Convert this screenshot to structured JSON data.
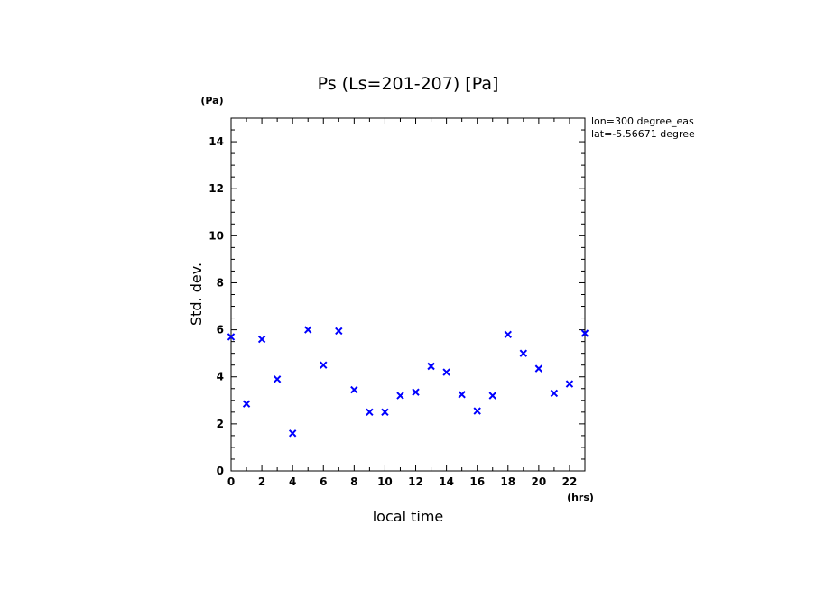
{
  "chart_data": {
    "type": "scatter",
    "title": "Ps (Ls=201-207) [Pa]",
    "xlabel": "local time",
    "ylabel": "Std. dev.",
    "x_unit": "(hrs)",
    "y_unit": "(Pa)",
    "xlim": [
      0,
      23
    ],
    "ylim": [
      0,
      15
    ],
    "x_ticks": [
      0,
      2,
      4,
      6,
      8,
      10,
      12,
      14,
      16,
      18,
      20,
      22
    ],
    "y_ticks": [
      0,
      2,
      4,
      6,
      8,
      10,
      12,
      14
    ],
    "marker": "x",
    "marker_color": "#0000ff",
    "grid": false,
    "annotations": [
      "lon=300 degree_eas",
      "lat=-5.56671 degree"
    ],
    "series": [
      {
        "x": [
          0,
          1,
          2,
          3,
          4,
          5,
          6,
          7,
          8,
          9,
          10,
          11,
          12,
          13,
          14,
          15,
          16,
          17,
          18,
          19,
          20,
          21,
          22,
          23
        ],
        "y": [
          5.7,
          2.85,
          5.6,
          3.9,
          1.6,
          6.0,
          4.5,
          5.95,
          3.45,
          2.5,
          2.5,
          3.2,
          3.35,
          4.45,
          4.2,
          3.25,
          2.55,
          3.2,
          5.8,
          5.0,
          4.35,
          3.3,
          3.7,
          5.85
        ]
      }
    ]
  }
}
